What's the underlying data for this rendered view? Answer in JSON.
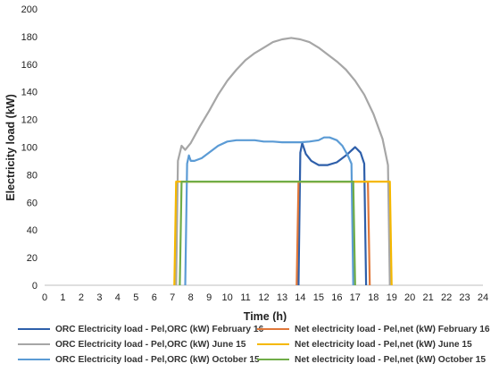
{
  "chart_data": {
    "type": "line",
    "xlabel": "Time (h)",
    "ylabel": "Electricity load (kW)",
    "xlim": [
      0,
      24
    ],
    "ylim": [
      0,
      200
    ],
    "xticks": [
      "0",
      "1",
      "2",
      "3",
      "4",
      "5",
      "6",
      "7",
      "8",
      "9",
      "10",
      "11",
      "12",
      "13",
      "14",
      "15",
      "16",
      "17",
      "18",
      "19",
      "20",
      "21",
      "22",
      "23",
      "24"
    ],
    "yticks": [
      "0",
      "20",
      "40",
      "60",
      "80",
      "100",
      "120",
      "140",
      "160",
      "180",
      "200"
    ],
    "grid": false,
    "legend_position": "bottom",
    "series": [
      {
        "name": "ORC Electricity load - Pel,ORC (kW) February 16",
        "color": "#2e5faa",
        "points": [
          [
            13.9,
            0
          ],
          [
            14.0,
            96
          ],
          [
            14.1,
            103
          ],
          [
            14.3,
            95
          ],
          [
            14.6,
            90
          ],
          [
            15.0,
            87
          ],
          [
            15.5,
            87
          ],
          [
            16.0,
            89
          ],
          [
            16.5,
            94
          ],
          [
            17.0,
            100
          ],
          [
            17.3,
            96
          ],
          [
            17.5,
            88
          ],
          [
            17.6,
            0
          ]
        ]
      },
      {
        "name": "Net electricity load - Pel,net (kW) February 16",
        "color": "#e0783a",
        "points": [
          [
            13.8,
            0
          ],
          [
            13.9,
            75
          ],
          [
            17.7,
            75
          ],
          [
            17.8,
            0
          ]
        ]
      },
      {
        "name": "ORC Electricity load - Pel,ORC (kW) June 15",
        "color": "#a6a6a6",
        "points": [
          [
            7.2,
            0
          ],
          [
            7.3,
            90
          ],
          [
            7.5,
            101
          ],
          [
            7.7,
            98
          ],
          [
            8.0,
            103
          ],
          [
            8.5,
            115
          ],
          [
            9.0,
            126
          ],
          [
            9.5,
            138
          ],
          [
            10.0,
            148
          ],
          [
            10.5,
            156
          ],
          [
            11.0,
            163
          ],
          [
            11.5,
            168
          ],
          [
            12.0,
            172
          ],
          [
            12.5,
            176
          ],
          [
            13.0,
            178
          ],
          [
            13.5,
            179
          ],
          [
            14.0,
            178
          ],
          [
            14.5,
            176
          ],
          [
            15.0,
            172
          ],
          [
            15.5,
            167
          ],
          [
            16.0,
            162
          ],
          [
            16.5,
            156
          ],
          [
            17.0,
            148
          ],
          [
            17.5,
            138
          ],
          [
            18.0,
            124
          ],
          [
            18.5,
            106
          ],
          [
            18.8,
            87
          ],
          [
            18.9,
            0
          ]
        ]
      },
      {
        "name": "Net electricity load - Pel,net (kW) June 15",
        "color": "#f5b800",
        "points": [
          [
            7.1,
            0
          ],
          [
            7.2,
            75
          ],
          [
            18.9,
            75
          ],
          [
            19.0,
            0
          ]
        ]
      },
      {
        "name": "ORC Electricity load - Pel,ORC (kW) October 15",
        "color": "#5b9bd5",
        "points": [
          [
            7.7,
            0
          ],
          [
            7.8,
            88
          ],
          [
            7.9,
            94
          ],
          [
            8.0,
            90
          ],
          [
            8.2,
            90
          ],
          [
            8.6,
            92
          ],
          [
            9.0,
            96
          ],
          [
            9.5,
            101
          ],
          [
            10.0,
            104
          ],
          [
            10.5,
            105
          ],
          [
            11.0,
            105
          ],
          [
            11.5,
            105
          ],
          [
            12.0,
            104
          ],
          [
            12.5,
            104
          ],
          [
            13.0,
            103.5
          ],
          [
            13.5,
            103.5
          ],
          [
            14.0,
            103.5
          ],
          [
            14.5,
            104
          ],
          [
            15.0,
            105
          ],
          [
            15.3,
            107
          ],
          [
            15.6,
            107
          ],
          [
            16.0,
            105
          ],
          [
            16.3,
            101
          ],
          [
            16.6,
            94
          ],
          [
            16.8,
            88
          ],
          [
            16.9,
            0
          ]
        ]
      },
      {
        "name": "Net electricity load - Pel,net (kW) October 15",
        "color": "#70ad47",
        "points": [
          [
            7.4,
            0
          ],
          [
            7.5,
            75
          ],
          [
            16.9,
            75
          ],
          [
            17.0,
            0
          ]
        ]
      }
    ]
  }
}
